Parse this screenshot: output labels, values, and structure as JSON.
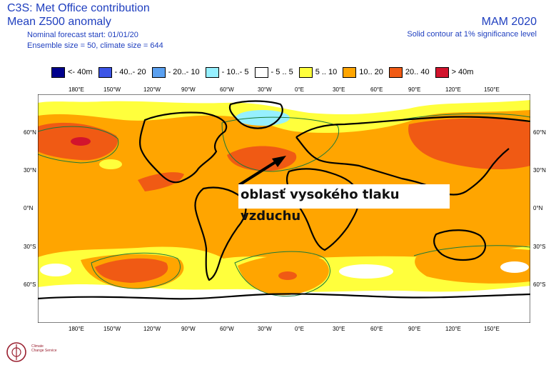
{
  "header": {
    "title": "C3S: Met Office contribution",
    "subtitle": "Mean Z500 anomaly",
    "forecast_start": "Nominal forecast start: 01/01/20",
    "ensemble": "Ensemble size = 50, climate size = 644",
    "season": "MAM 2020",
    "contour_note": "Solid contour at 1% significance level"
  },
  "legend": [
    {
      "label": "<- 40m",
      "color": "#00008c"
    },
    {
      "label": "- 40..- 20",
      "color": "#3c55e6"
    },
    {
      "label": "- 20..- 10",
      "color": "#5aa0f0"
    },
    {
      "label": "- 10..- 5",
      "color": "#96f0ff"
    },
    {
      "label": "- 5 .. 5",
      "color": "#ffffff"
    },
    {
      "label": "5 .. 10",
      "color": "#ffff3c"
    },
    {
      "label": "10.. 20",
      "color": "#ffa500"
    },
    {
      "label": "20.. 40",
      "color": "#f05a14"
    },
    {
      "label": "> 40m",
      "color": "#d2142d"
    }
  ],
  "lon_labels": [
    "180°E",
    "150°W",
    "120°W",
    "90°W",
    "60°W",
    "30°W",
    "0°E",
    "30°E",
    "60°E",
    "90°E",
    "120°E",
    "150°E"
  ],
  "lat_labels": [
    "60°N",
    "30°N",
    "0°N",
    "30°S",
    "60°S"
  ],
  "annotation": "oblasť vysokého tlaku vzduchu",
  "logo": {
    "line1": "Climate",
    "line2": "Change Service"
  }
}
